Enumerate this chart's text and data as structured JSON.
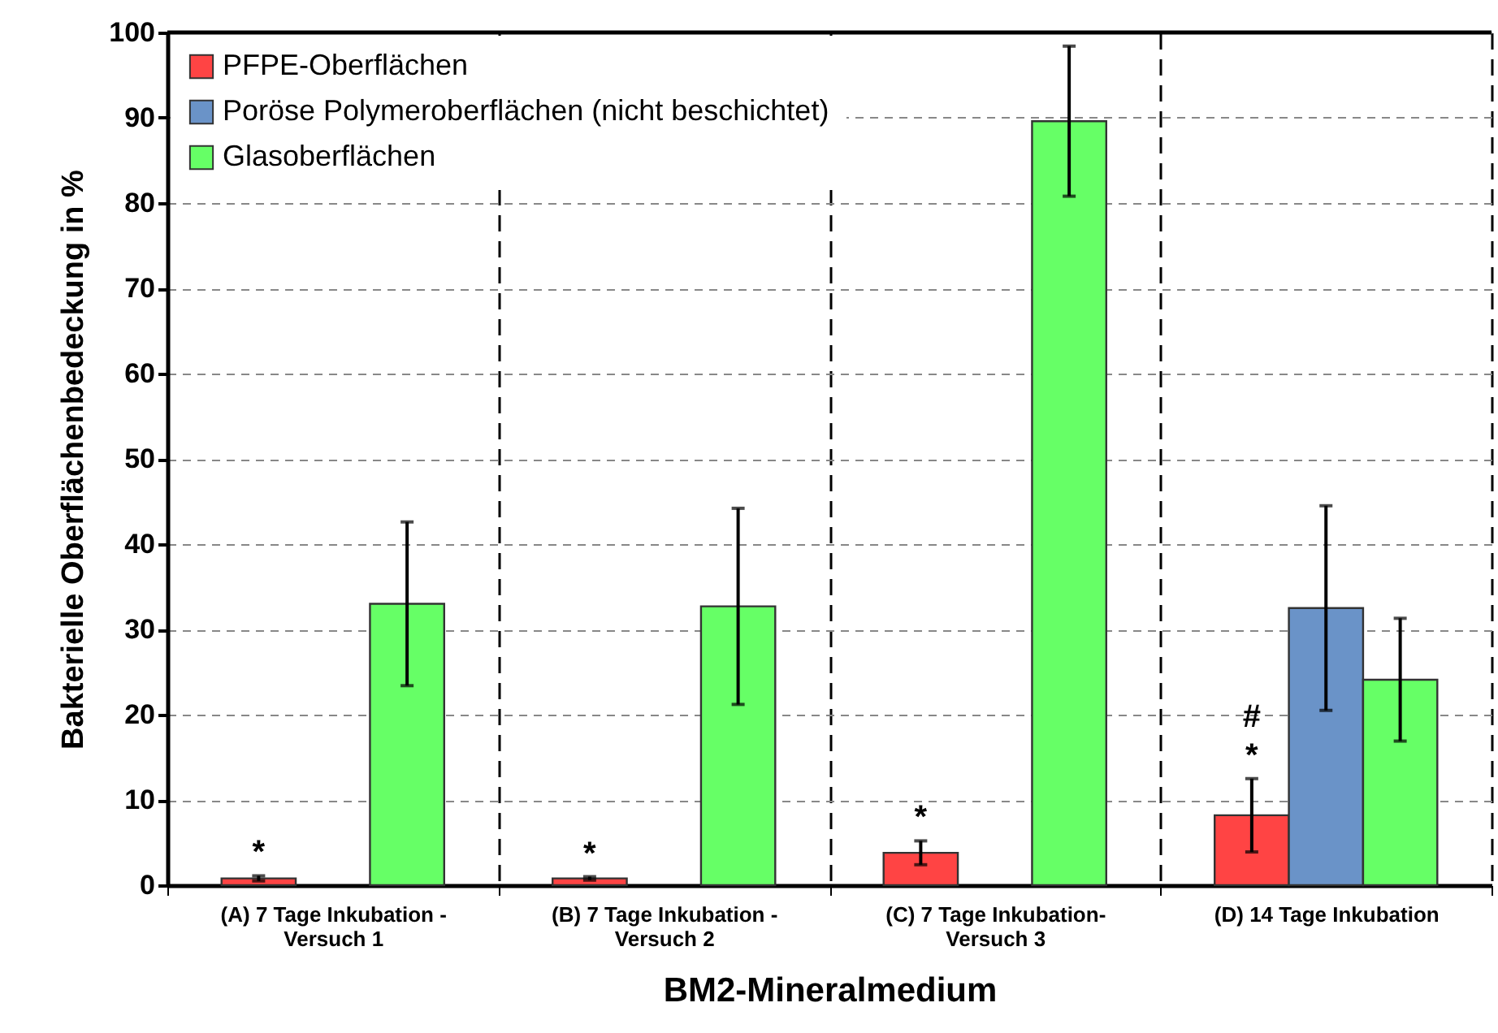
{
  "chart_data": {
    "type": "bar",
    "xlabel": "BM2-Mineralmedium",
    "ylabel": "Bakterielle Oberflächenbedeckung in %",
    "categories": [
      "(A) 7 Tage Inkubation -\nVersuch 1",
      "(B) 7 Tage Inkubation -\nVersuch 2",
      "(C) 7 Tage Inkubation-\nVersuch 3",
      "(D) 14 Tage Inkubation"
    ],
    "series": [
      {
        "name": "PFPE-Oberflächen",
        "color": "#ff4444",
        "values": [
          0.8,
          0.8,
          3.8,
          8.2
        ],
        "errors": [
          0.3,
          0.2,
          1.4,
          4.3
        ]
      },
      {
        "name": "Poröse Polymeroberflächen (nicht beschichtet)",
        "color": "#6a93c8",
        "values": [
          null,
          null,
          null,
          32.5
        ],
        "errors": [
          null,
          null,
          null,
          12
        ]
      },
      {
        "name": "Glasoberflächen",
        "color": "#66ff66",
        "values": [
          33,
          32.7,
          89.6,
          24.1
        ],
        "errors": [
          9.6,
          11.5,
          8.8,
          7.2
        ]
      }
    ],
    "ylim": [
      0,
      100
    ],
    "yticks": [
      0,
      10,
      20,
      30,
      40,
      50,
      60,
      70,
      80,
      90,
      100
    ],
    "grid": true,
    "legend": "top left",
    "annotations": [
      "*",
      "*",
      "*",
      "*",
      "#"
    ]
  }
}
